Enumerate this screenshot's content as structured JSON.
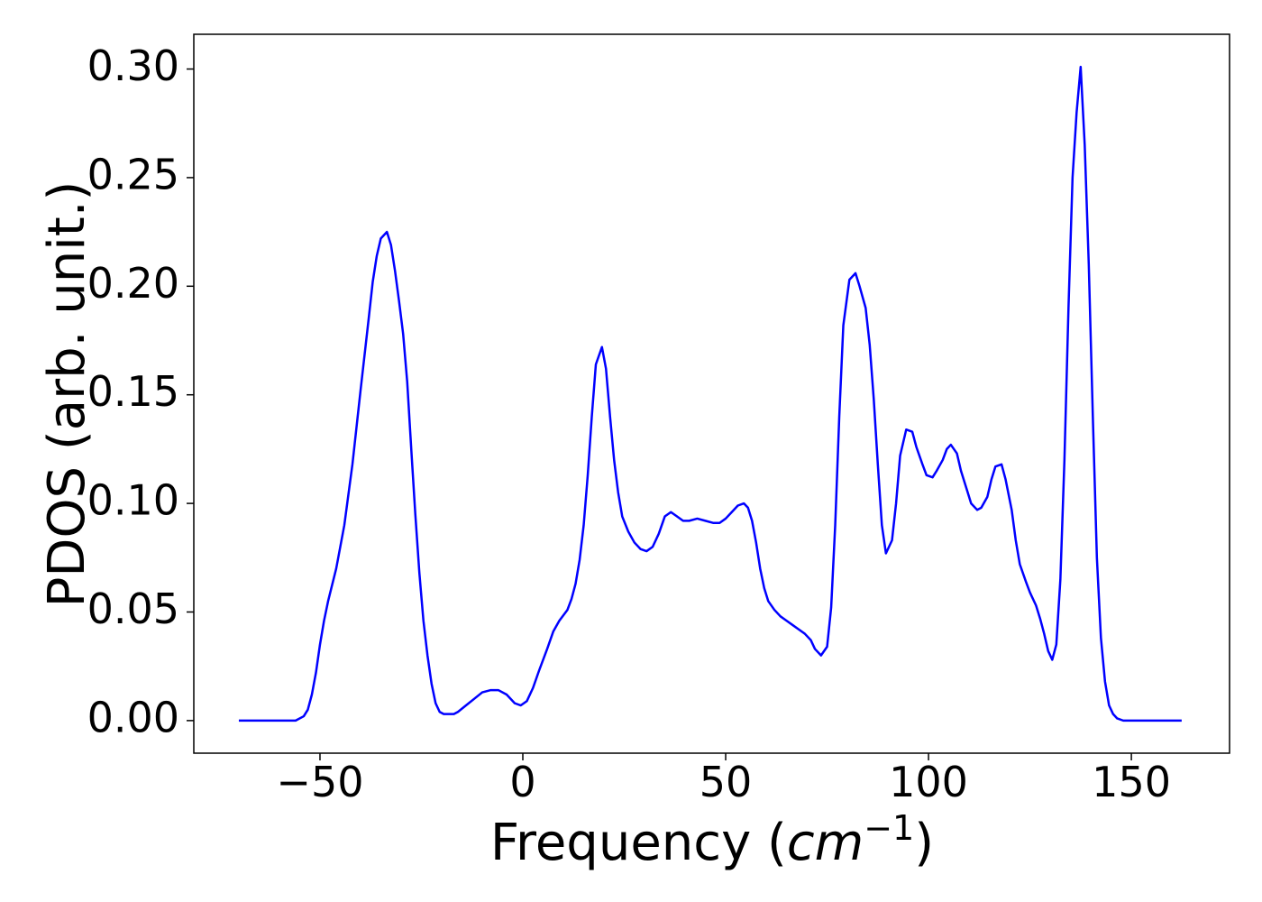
{
  "chart_data": {
    "type": "line",
    "xlabel": [
      "Frequency (",
      "cm",
      "−1",
      ")"
    ],
    "ylabel": "PDOS (arb. unit.)",
    "xlim": [
      -81.1,
      174.2
    ],
    "ylim": [
      -0.015,
      0.316
    ],
    "xticks": [
      {
        "value": -50,
        "label": "−50"
      },
      0,
      50,
      100,
      150
    ],
    "yticks": [
      {
        "value": 0,
        "label": "0.00"
      },
      {
        "value": 0.05,
        "label": "0.05"
      },
      {
        "value": 0.1,
        "label": "0.10"
      },
      {
        "value": 0.15,
        "label": "0.15"
      },
      {
        "value": 0.2,
        "label": "0.20"
      },
      {
        "value": 0.25,
        "label": "0.25"
      },
      {
        "value": 0.3,
        "label": "0.30"
      }
    ],
    "grid": false,
    "x": [
      -70,
      -56,
      -54,
      -53,
      -52,
      -51,
      -50,
      -49,
      -48,
      -46,
      -44,
      -42,
      -40,
      -38,
      -37,
      -36,
      -35,
      -33.5,
      -32.5,
      -31.5,
      -30.5,
      -29.5,
      -28.5,
      -27.5,
      -26.5,
      -25.5,
      -24.5,
      -23.5,
      -22.5,
      -21.5,
      -20.5,
      -19.5,
      -17,
      -16,
      -14,
      -12,
      -10,
      -8,
      -6,
      -4,
      -2,
      -0.5,
      1,
      2.5,
      4,
      6,
      7.5,
      9,
      11,
      12,
      13,
      14,
      15,
      16,
      17,
      18,
      19.5,
      20.5,
      21.5,
      22.5,
      23.5,
      24.5,
      26,
      27.5,
      29,
      30.5,
      32,
      33.5,
      35,
      36.5,
      38,
      39.5,
      41,
      43,
      45,
      47,
      48.5,
      50,
      51.5,
      53,
      54.5,
      55.5,
      56.5,
      57.5,
      58.5,
      59.5,
      60.5,
      62,
      63.5,
      65,
      66.5,
      68,
      69.5,
      71,
      72,
      73.5,
      75,
      76,
      77,
      78,
      79,
      80.5,
      82,
      83,
      84.5,
      85.5,
      86.5,
      87.5,
      88.5,
      89.5,
      91,
      92,
      93,
      94.5,
      96,
      97,
      98.5,
      99.5,
      101,
      102,
      103.5,
      104.5,
      105.5,
      107,
      108,
      109.5,
      110.5,
      112,
      113,
      114.5,
      115.5,
      116.5,
      118,
      119,
      120.5,
      121.5,
      122.5,
      124,
      125,
      126.5,
      127.5,
      128.5,
      129.5,
      130.5,
      131.5,
      132.5,
      133.5,
      134.5,
      135.5,
      136.5,
      137.5,
      138.5,
      139.5,
      140.5,
      141.5,
      142.5,
      143.5,
      144.5,
      145.5,
      146.5,
      148,
      162.4
    ],
    "series": [
      {
        "name": "PDOS",
        "color": "#0000ff",
        "values": [
          0,
          0,
          0.002,
          0.005,
          0.012,
          0.022,
          0.035,
          0.046,
          0.055,
          0.07,
          0.09,
          0.118,
          0.152,
          0.185,
          0.202,
          0.214,
          0.222,
          0.225,
          0.219,
          0.207,
          0.193,
          0.178,
          0.156,
          0.125,
          0.095,
          0.068,
          0.046,
          0.03,
          0.017,
          0.008,
          0.004,
          0.003,
          0.003,
          0.004,
          0.007,
          0.01,
          0.013,
          0.014,
          0.014,
          0.012,
          0.008,
          0.007,
          0.009,
          0.015,
          0.023,
          0.033,
          0.041,
          0.046,
          0.051,
          0.056,
          0.063,
          0.074,
          0.09,
          0.113,
          0.14,
          0.164,
          0.172,
          0.162,
          0.14,
          0.12,
          0.105,
          0.094,
          0.087,
          0.082,
          0.079,
          0.078,
          0.08,
          0.086,
          0.094,
          0.096,
          0.094,
          0.092,
          0.092,
          0.093,
          0.092,
          0.091,
          0.091,
          0.093,
          0.096,
          0.099,
          0.1,
          0.098,
          0.092,
          0.082,
          0.07,
          0.061,
          0.055,
          0.051,
          0.048,
          0.046,
          0.044,
          0.042,
          0.04,
          0.037,
          0.033,
          0.03,
          0.034,
          0.052,
          0.09,
          0.14,
          0.182,
          0.203,
          0.206,
          0.2,
          0.19,
          0.173,
          0.148,
          0.118,
          0.09,
          0.077,
          0.083,
          0.1,
          0.122,
          0.134,
          0.133,
          0.126,
          0.118,
          0.113,
          0.112,
          0.115,
          0.12,
          0.125,
          0.127,
          0.123,
          0.115,
          0.106,
          0.1,
          0.097,
          0.098,
          0.103,
          0.111,
          0.117,
          0.118,
          0.111,
          0.097,
          0.083,
          0.072,
          0.064,
          0.059,
          0.053,
          0.047,
          0.04,
          0.032,
          0.028,
          0.035,
          0.065,
          0.12,
          0.19,
          0.25,
          0.28,
          0.301,
          0.265,
          0.21,
          0.14,
          0.075,
          0.038,
          0.018,
          0.007,
          0.003,
          0.001,
          0,
          0
        ]
      }
    ]
  }
}
